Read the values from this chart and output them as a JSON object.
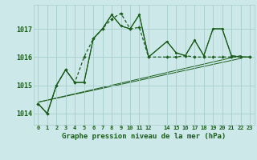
{
  "title": "Graphe pression niveau de la mer (hPa)",
  "bg_color": "#cce8e8",
  "line_color": "#1a5c1a",
  "grid_color": "#a8cccc",
  "xlim": [
    -0.5,
    23.5
  ],
  "ylim": [
    1013.6,
    1017.85
  ],
  "yticks": [
    1014,
    1015,
    1016,
    1017
  ],
  "xticks": [
    0,
    1,
    2,
    3,
    4,
    5,
    6,
    7,
    8,
    9,
    10,
    11,
    12,
    14,
    15,
    16,
    17,
    18,
    19,
    20,
    21,
    22,
    23
  ],
  "xtick_labels": [
    "0",
    "1",
    "2",
    "3",
    "4",
    "5",
    "6",
    "7",
    "8",
    "9",
    "10",
    "11",
    "12",
    "14",
    "15",
    "16",
    "17",
    "18",
    "19",
    "20",
    "21",
    "22",
    "23"
  ],
  "x_hours": [
    0,
    1,
    2,
    3,
    4,
    5,
    6,
    7,
    8,
    9,
    10,
    11,
    12,
    14,
    15,
    16,
    17,
    18,
    19,
    20,
    21,
    22,
    23
  ],
  "series1": [
    1014.35,
    1014.0,
    1015.0,
    1015.55,
    1015.1,
    1016.0,
    1016.65,
    1017.0,
    1017.35,
    1017.55,
    1017.0,
    1017.05,
    1016.0,
    1016.0,
    1016.0,
    1016.05,
    1016.0,
    1016.0,
    1016.0,
    1016.0,
    1016.0,
    1016.0,
    1016.0
  ],
  "series2": [
    1014.35,
    1014.0,
    1015.0,
    1015.55,
    1015.1,
    1015.1,
    1016.65,
    1017.0,
    1017.5,
    1017.1,
    1017.0,
    1017.5,
    1016.0,
    1016.55,
    1016.15,
    1016.05,
    1016.6,
    1016.05,
    1017.0,
    1017.0,
    1016.05,
    1016.0,
    1016.0
  ],
  "series3": [
    1014.35,
    1014.0,
    1015.0,
    1015.55,
    1015.1,
    1015.1,
    1016.65,
    1017.0,
    1017.5,
    1017.1,
    1017.0,
    1017.5,
    1016.0,
    1016.55,
    1016.15,
    1016.05,
    1016.6,
    1016.05,
    1017.0,
    1017.0,
    1016.05,
    1016.0,
    1016.0
  ],
  "trend1": [
    1014.4,
    1015.95
  ],
  "trend2": [
    1014.4,
    1016.05
  ],
  "trend_x": [
    0,
    22
  ]
}
